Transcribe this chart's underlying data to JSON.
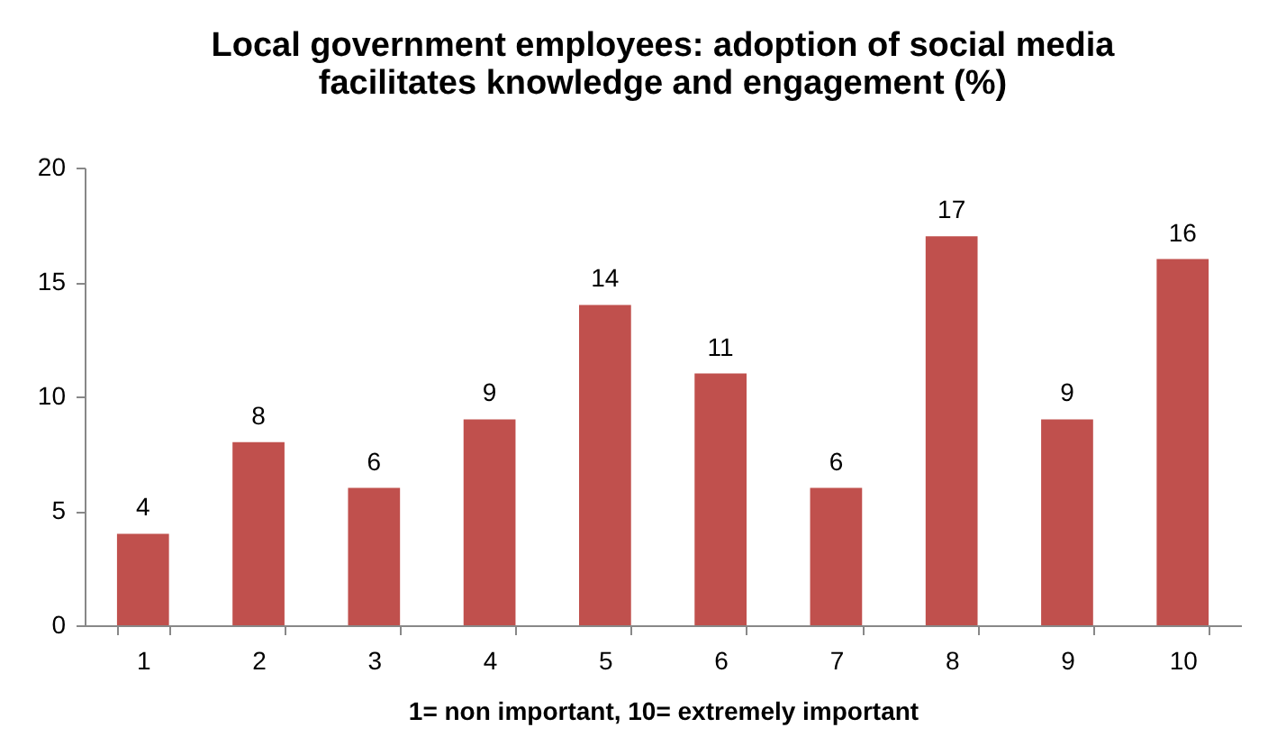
{
  "chart_data": {
    "type": "bar",
    "title": "Local government employees: adoption of social media facilitates knowledge and engagement (%)",
    "xlabel": "1= non important, 10= extremely important",
    "categories": [
      "1",
      "2",
      "3",
      "4",
      "5",
      "6",
      "7",
      "8",
      "9",
      "10"
    ],
    "values": [
      4,
      8,
      6,
      9,
      14,
      11,
      6,
      17,
      9,
      16
    ],
    "color": "#c0504d",
    "ylim": [
      0,
      20
    ],
    "yticks": [
      0,
      5,
      10,
      15,
      20
    ],
    "grid": false,
    "data_labels": true
  }
}
